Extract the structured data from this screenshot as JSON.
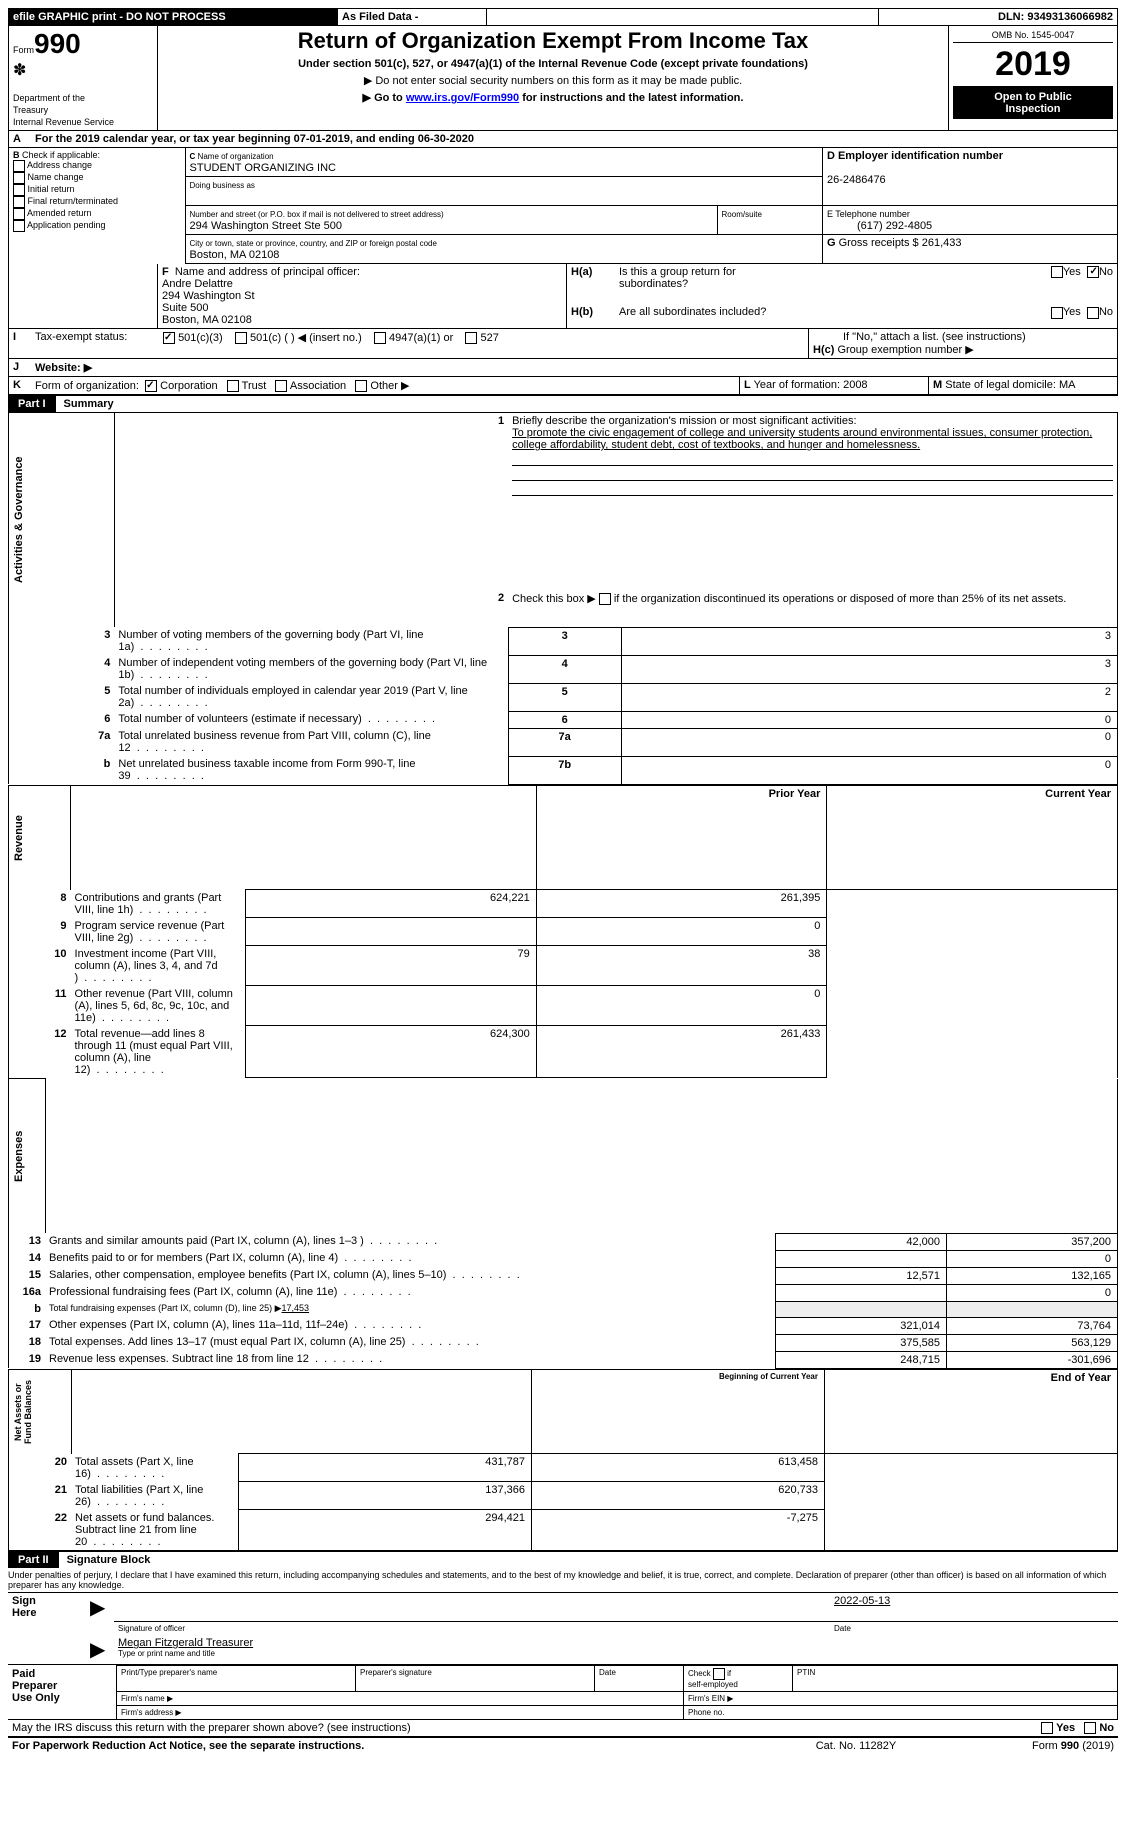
{
  "top_bar": {
    "efile": "efile GRAPHIC print - DO NOT PROCESS",
    "as_filed": "As Filed Data -",
    "dln_label": "DLN:",
    "dln": "93493136066982"
  },
  "header": {
    "form_label": "Form",
    "form_no": "990",
    "dept1": "Department of the",
    "dept2": "Treasury",
    "dept3": "Internal Revenue Service",
    "title": "Return of Organization Exempt From Income Tax",
    "subtitle": "Under section 501(c), 527, or 4947(a)(1) of the Internal Revenue Code (except private foundations)",
    "note1": "▶ Do not enter social security numbers on this form as it may be made public.",
    "note2": "▶ Go to ",
    "link": "www.irs.gov/Form990",
    "note2_end": " for instructions and the latest information.",
    "omb_label": "OMB No. 1545-0047",
    "year": "2019",
    "open1": "Open to Public",
    "open2": "Inspection"
  },
  "period": {
    "label": "For the 2019 calendar year, or tax year beginning ",
    "start": "07-01-2019",
    "mid": ", and ending ",
    "end": "06-30-2020"
  },
  "boxB": {
    "label": "Check if applicable:",
    "items": [
      "Address change",
      "Name change",
      "Initial return",
      "Final return/terminated",
      "Amended return",
      "Application pending"
    ]
  },
  "boxC": {
    "name_label": "Name of organization",
    "name": "STUDENT ORGANIZING INC",
    "dba_label": "Doing business as",
    "addr_label": "Number and street (or P.O. box if mail is not delivered to street address)",
    "addr": "294 Washington Street Ste 500",
    "room_label": "Room/suite",
    "city_label": "City or town, state or province, country, and ZIP or foreign postal code",
    "city": "Boston, MA  02108"
  },
  "boxD": {
    "label": "Employer identification number",
    "val": "26-2486476"
  },
  "boxE": {
    "label": "Telephone number",
    "val": "(617) 292-4805"
  },
  "boxG": {
    "label": "Gross receipts $",
    "val": "261,433"
  },
  "boxF": {
    "label": "Name and address of principal officer:",
    "lines": [
      "Andre Delattre",
      "294 Washington St",
      "Suite 500",
      "Boston, MA  02108"
    ]
  },
  "boxH": {
    "a_label": "Is this a group return for",
    "a_label2": "subordinates?",
    "b_label": "Are all subordinates included?",
    "no_note": "If \"No,\" attach a list. (see instructions)",
    "c_label": "Group exemption number ▶",
    "yes": "Yes",
    "no": "No"
  },
  "rowI": {
    "label": "Tax-exempt status:",
    "opts": [
      "501(c)(3)",
      "501(c) (  ) ◀ (insert no.)",
      "4947(a)(1) or",
      "527"
    ]
  },
  "rowJ": {
    "label": "Website: ▶"
  },
  "rowK": {
    "label": "Form of organization:",
    "opts": [
      "Corporation",
      "Trust",
      "Association",
      "Other ▶"
    ],
    "L_label": "Year of formation:",
    "L_val": "2008",
    "M_label": "State of legal domicile:",
    "M_val": "MA"
  },
  "part1": {
    "tab": "Part I",
    "title": "Summary"
  },
  "sec_act": "Activities & Governance",
  "sec_rev": "Revenue",
  "sec_exp": "Expenses",
  "sec_net": "Net Assets or Fund Balances",
  "l1": {
    "num": "1",
    "text": "Briefly describe the organization's mission or most significant activities:",
    "mission": "To promote the civic engagement of college and university students around environmental issues, consumer protection, college affordability, student debt, cost of textbooks, and hunger and homelessness."
  },
  "l2": {
    "num": "2",
    "text": "Check this box ▶ ",
    "text2": " if the organization discontinued its operations or disposed of more than 25% of its net assets."
  },
  "lines_simple": [
    {
      "num": "3",
      "text": "Number of voting members of the governing body (Part VI, line 1a)",
      "box": "3",
      "val": "3"
    },
    {
      "num": "4",
      "text": "Number of independent voting members of the governing body (Part VI, line 1b)",
      "box": "4",
      "val": "3"
    },
    {
      "num": "5",
      "text": "Total number of individuals employed in calendar year 2019 (Part V, line 2a)",
      "box": "5",
      "val": "2"
    },
    {
      "num": "6",
      "text": "Total number of volunteers (estimate if necessary)",
      "box": "6",
      "val": "0"
    },
    {
      "num": "7a",
      "text": "Total unrelated business revenue from Part VIII, column (C), line 12",
      "box": "7a",
      "val": "0"
    },
    {
      "num": "b",
      "text": "Net unrelated business taxable income from Form 990-T, line 39",
      "box": "7b",
      "val": "0"
    }
  ],
  "two_col_hdr": {
    "prior": "Prior Year",
    "current": "Current Year"
  },
  "rev_lines": [
    {
      "num": "8",
      "text": "Contributions and grants (Part VIII, line 1h)",
      "p": "624,221",
      "c": "261,395"
    },
    {
      "num": "9",
      "text": "Program service revenue (Part VIII, line 2g)",
      "p": "",
      "c": "0"
    },
    {
      "num": "10",
      "text": "Investment income (Part VIII, column (A), lines 3, 4, and 7d )",
      "p": "79",
      "c": "38"
    },
    {
      "num": "11",
      "text": "Other revenue (Part VIII, column (A), lines 5, 6d, 8c, 9c, 10c, and 11e)",
      "p": "",
      "c": "0"
    },
    {
      "num": "12",
      "text": "Total revenue—add lines 8 through 11 (must equal Part VIII, column (A), line 12)",
      "p": "624,300",
      "c": "261,433"
    }
  ],
  "exp_lines": [
    {
      "num": "13",
      "text": "Grants and similar amounts paid (Part IX, column (A), lines 1–3 )",
      "p": "42,000",
      "c": "357,200"
    },
    {
      "num": "14",
      "text": "Benefits paid to or for members (Part IX, column (A), line 4)",
      "p": "",
      "c": "0"
    },
    {
      "num": "15",
      "text": "Salaries, other compensation, employee benefits (Part IX, column (A), lines 5–10)",
      "p": "12,571",
      "c": "132,165"
    },
    {
      "num": "16a",
      "text": "Professional fundraising fees (Part IX, column (A), line 11e)",
      "p": "",
      "c": "0"
    }
  ],
  "l16b": {
    "num": "b",
    "text": "Total fundraising expenses (Part IX, column (D), line 25) ▶",
    "val": "17,453"
  },
  "exp_lines2": [
    {
      "num": "17",
      "text": "Other expenses (Part IX, column (A), lines 11a–11d, 11f–24e)",
      "p": "321,014",
      "c": "73,764"
    },
    {
      "num": "18",
      "text": "Total expenses. Add lines 13–17 (must equal Part IX, column (A), line 25)",
      "p": "375,585",
      "c": "563,129"
    },
    {
      "num": "19",
      "text": "Revenue less expenses. Subtract line 18 from line 12",
      "p": "248,715",
      "c": "-301,696"
    }
  ],
  "net_hdr": {
    "begin": "Beginning of Current Year",
    "end": "End of Year"
  },
  "net_lines": [
    {
      "num": "20",
      "text": "Total assets (Part X, line 16)",
      "p": "431,787",
      "c": "613,458"
    },
    {
      "num": "21",
      "text": "Total liabilities (Part X, line 26)",
      "p": "137,366",
      "c": "620,733"
    },
    {
      "num": "22",
      "text": "Net assets or fund balances. Subtract line 21 from line 20",
      "p": "294,421",
      "c": "-7,275"
    }
  ],
  "part2": {
    "tab": "Part II",
    "title": "Signature Block"
  },
  "declaration": "Under penalties of perjury, I declare that I have examined this return, including accompanying schedules and statements, and to the best of my knowledge and belief, it is true, correct, and complete. Declaration of preparer (other than officer) is based on all information of which preparer has any knowledge.",
  "sign": {
    "here": "Sign Here",
    "sig_label": "Signature of officer",
    "date": "2022-05-13",
    "date_label": "Date",
    "name": "Megan Fitzgerald Treasurer",
    "name_label": "Type or print name and title"
  },
  "paid": {
    "title": "Paid Preparer Use Only",
    "cols": [
      "Print/Type preparer's name",
      "Preparer's signature",
      "Date"
    ],
    "check_label": "Check",
    "if_label": "if",
    "self": "self-employed",
    "ptin": "PTIN",
    "firm_name": "Firm's name  ▶",
    "firm_ein": "Firm's EIN ▶",
    "firm_addr": "Firm's address ▶",
    "phone": "Phone no."
  },
  "bottom": {
    "irs": "May the IRS discuss this return with the preparer shown above? (see instructions)",
    "paperwork": "For Paperwork Reduction Act Notice, see the separate instructions.",
    "cat": "Cat. No. 11282Y",
    "form": "Form 990 (2019)"
  }
}
